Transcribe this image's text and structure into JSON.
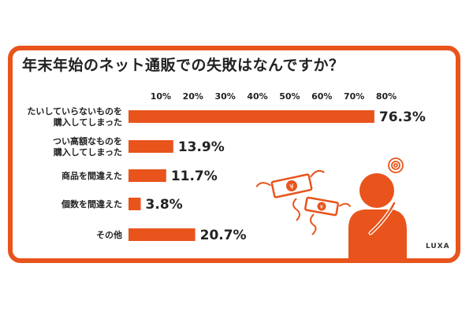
{
  "chart_data": {
    "type": "bar",
    "orientation": "horizontal",
    "title": "年末年始のネット通販での失敗はなんですか？",
    "categories": [
      [
        "たいしていらないものを",
        "購入してしまった"
      ],
      [
        "つい高額なものを",
        "購入してしまった"
      ],
      [
        "商品を間違えた"
      ],
      [
        "個数を間違えた"
      ],
      [
        "その他"
      ]
    ],
    "values": [
      76.3,
      13.9,
      11.7,
      3.8,
      20.7
    ],
    "value_labels": [
      "76.3%",
      "13.9%",
      "11.7%",
      "3.8%",
      "20.7%"
    ],
    "ticks": [
      "10%",
      "20%",
      "30%",
      "40%",
      "50%",
      "60%",
      "70%",
      "80%"
    ],
    "xlim": [
      0,
      80
    ],
    "grid": false,
    "legend": "none",
    "bar_color": "#e8541c",
    "frame_color": "#e8541c"
  },
  "brand": "LUXA"
}
